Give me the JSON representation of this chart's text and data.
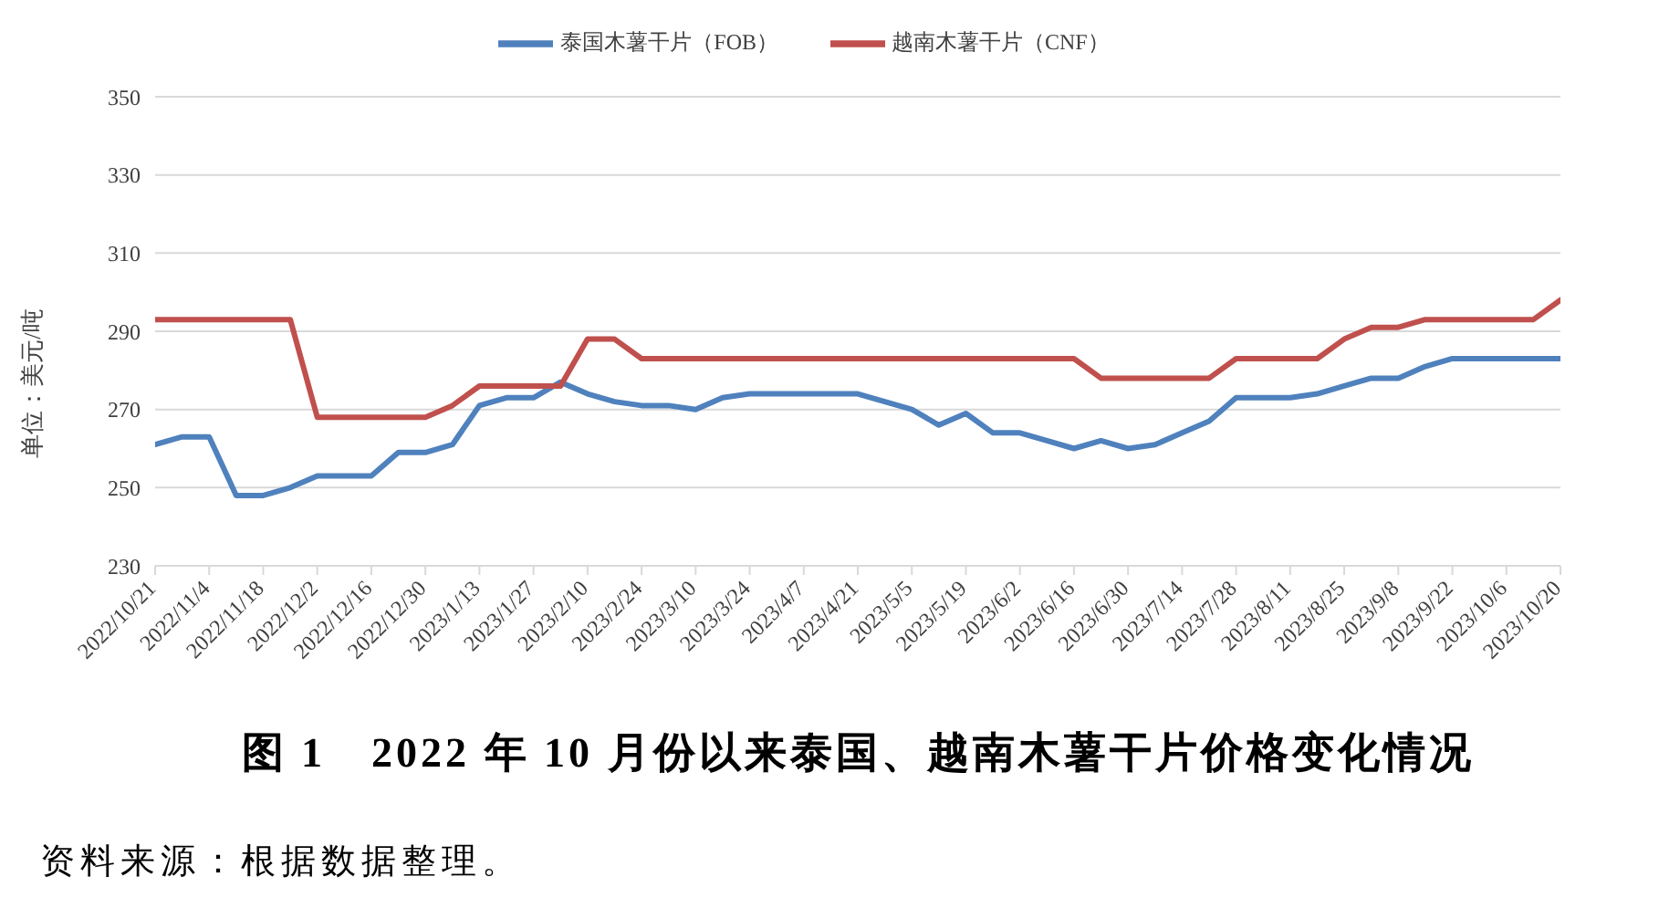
{
  "chart_data": {
    "type": "line",
    "title": "图 1　2022 年 10 月份以来泰国、越南木薯干片价格变化情况",
    "ylabel": "单位：美元/吨",
    "annotations": [
      "资料来源：根据数据整理。"
    ],
    "categories": [
      "2022/10/21",
      null,
      "2022/11/4",
      null,
      "2022/11/18",
      null,
      "2022/12/2",
      null,
      "2022/12/16",
      null,
      "2022/12/30",
      null,
      "2023/1/13",
      null,
      "2023/1/27",
      null,
      "2023/2/10",
      null,
      "2023/2/24",
      null,
      "2023/3/10",
      null,
      "2023/3/24",
      null,
      "2023/4/7",
      null,
      "2023/4/21",
      null,
      "2023/5/5",
      null,
      "2023/5/19",
      null,
      "2023/6/2",
      null,
      "2023/6/16",
      null,
      "2023/6/30",
      null,
      "2023/7/14",
      null,
      "2023/7/28",
      null,
      "2023/8/11",
      null,
      "2023/8/25",
      null,
      "2023/9/8",
      null,
      "2023/9/22",
      null,
      "2023/10/6",
      null,
      "2023/10/20"
    ],
    "series": [
      {
        "name": "泰国木薯干片（FOB）",
        "color": "#4f81bd",
        "values": [
          261,
          263,
          263,
          248,
          248,
          250,
          253,
          253,
          253,
          259,
          259,
          261,
          271,
          273,
          273,
          277,
          274,
          272,
          271,
          271,
          270,
          273,
          274,
          274,
          274,
          274,
          274,
          272,
          270,
          266,
          269,
          264,
          264,
          262,
          260,
          262,
          260,
          261,
          264,
          267,
          273,
          273,
          273,
          274,
          276,
          278,
          278,
          281,
          283,
          283,
          283,
          283,
          283
        ]
      },
      {
        "name": "越南木薯干片（CNF）",
        "color": "#c0504d",
        "values": [
          293,
          293,
          293,
          293,
          293,
          293,
          268,
          268,
          268,
          268,
          268,
          271,
          276,
          276,
          276,
          276,
          288,
          288,
          283,
          283,
          283,
          283,
          283,
          283,
          283,
          283,
          283,
          283,
          283,
          283,
          283,
          283,
          283,
          283,
          283,
          278,
          278,
          278,
          278,
          278,
          283,
          283,
          283,
          283,
          288,
          291,
          291,
          293,
          293,
          293,
          293,
          293,
          298
        ]
      }
    ],
    "ylim": [
      230,
      350
    ],
    "yticks": [
      230,
      250,
      270,
      290,
      310,
      330,
      350
    ],
    "grid": "y",
    "legend": "top",
    "marker": "none",
    "line_style": "solid"
  }
}
